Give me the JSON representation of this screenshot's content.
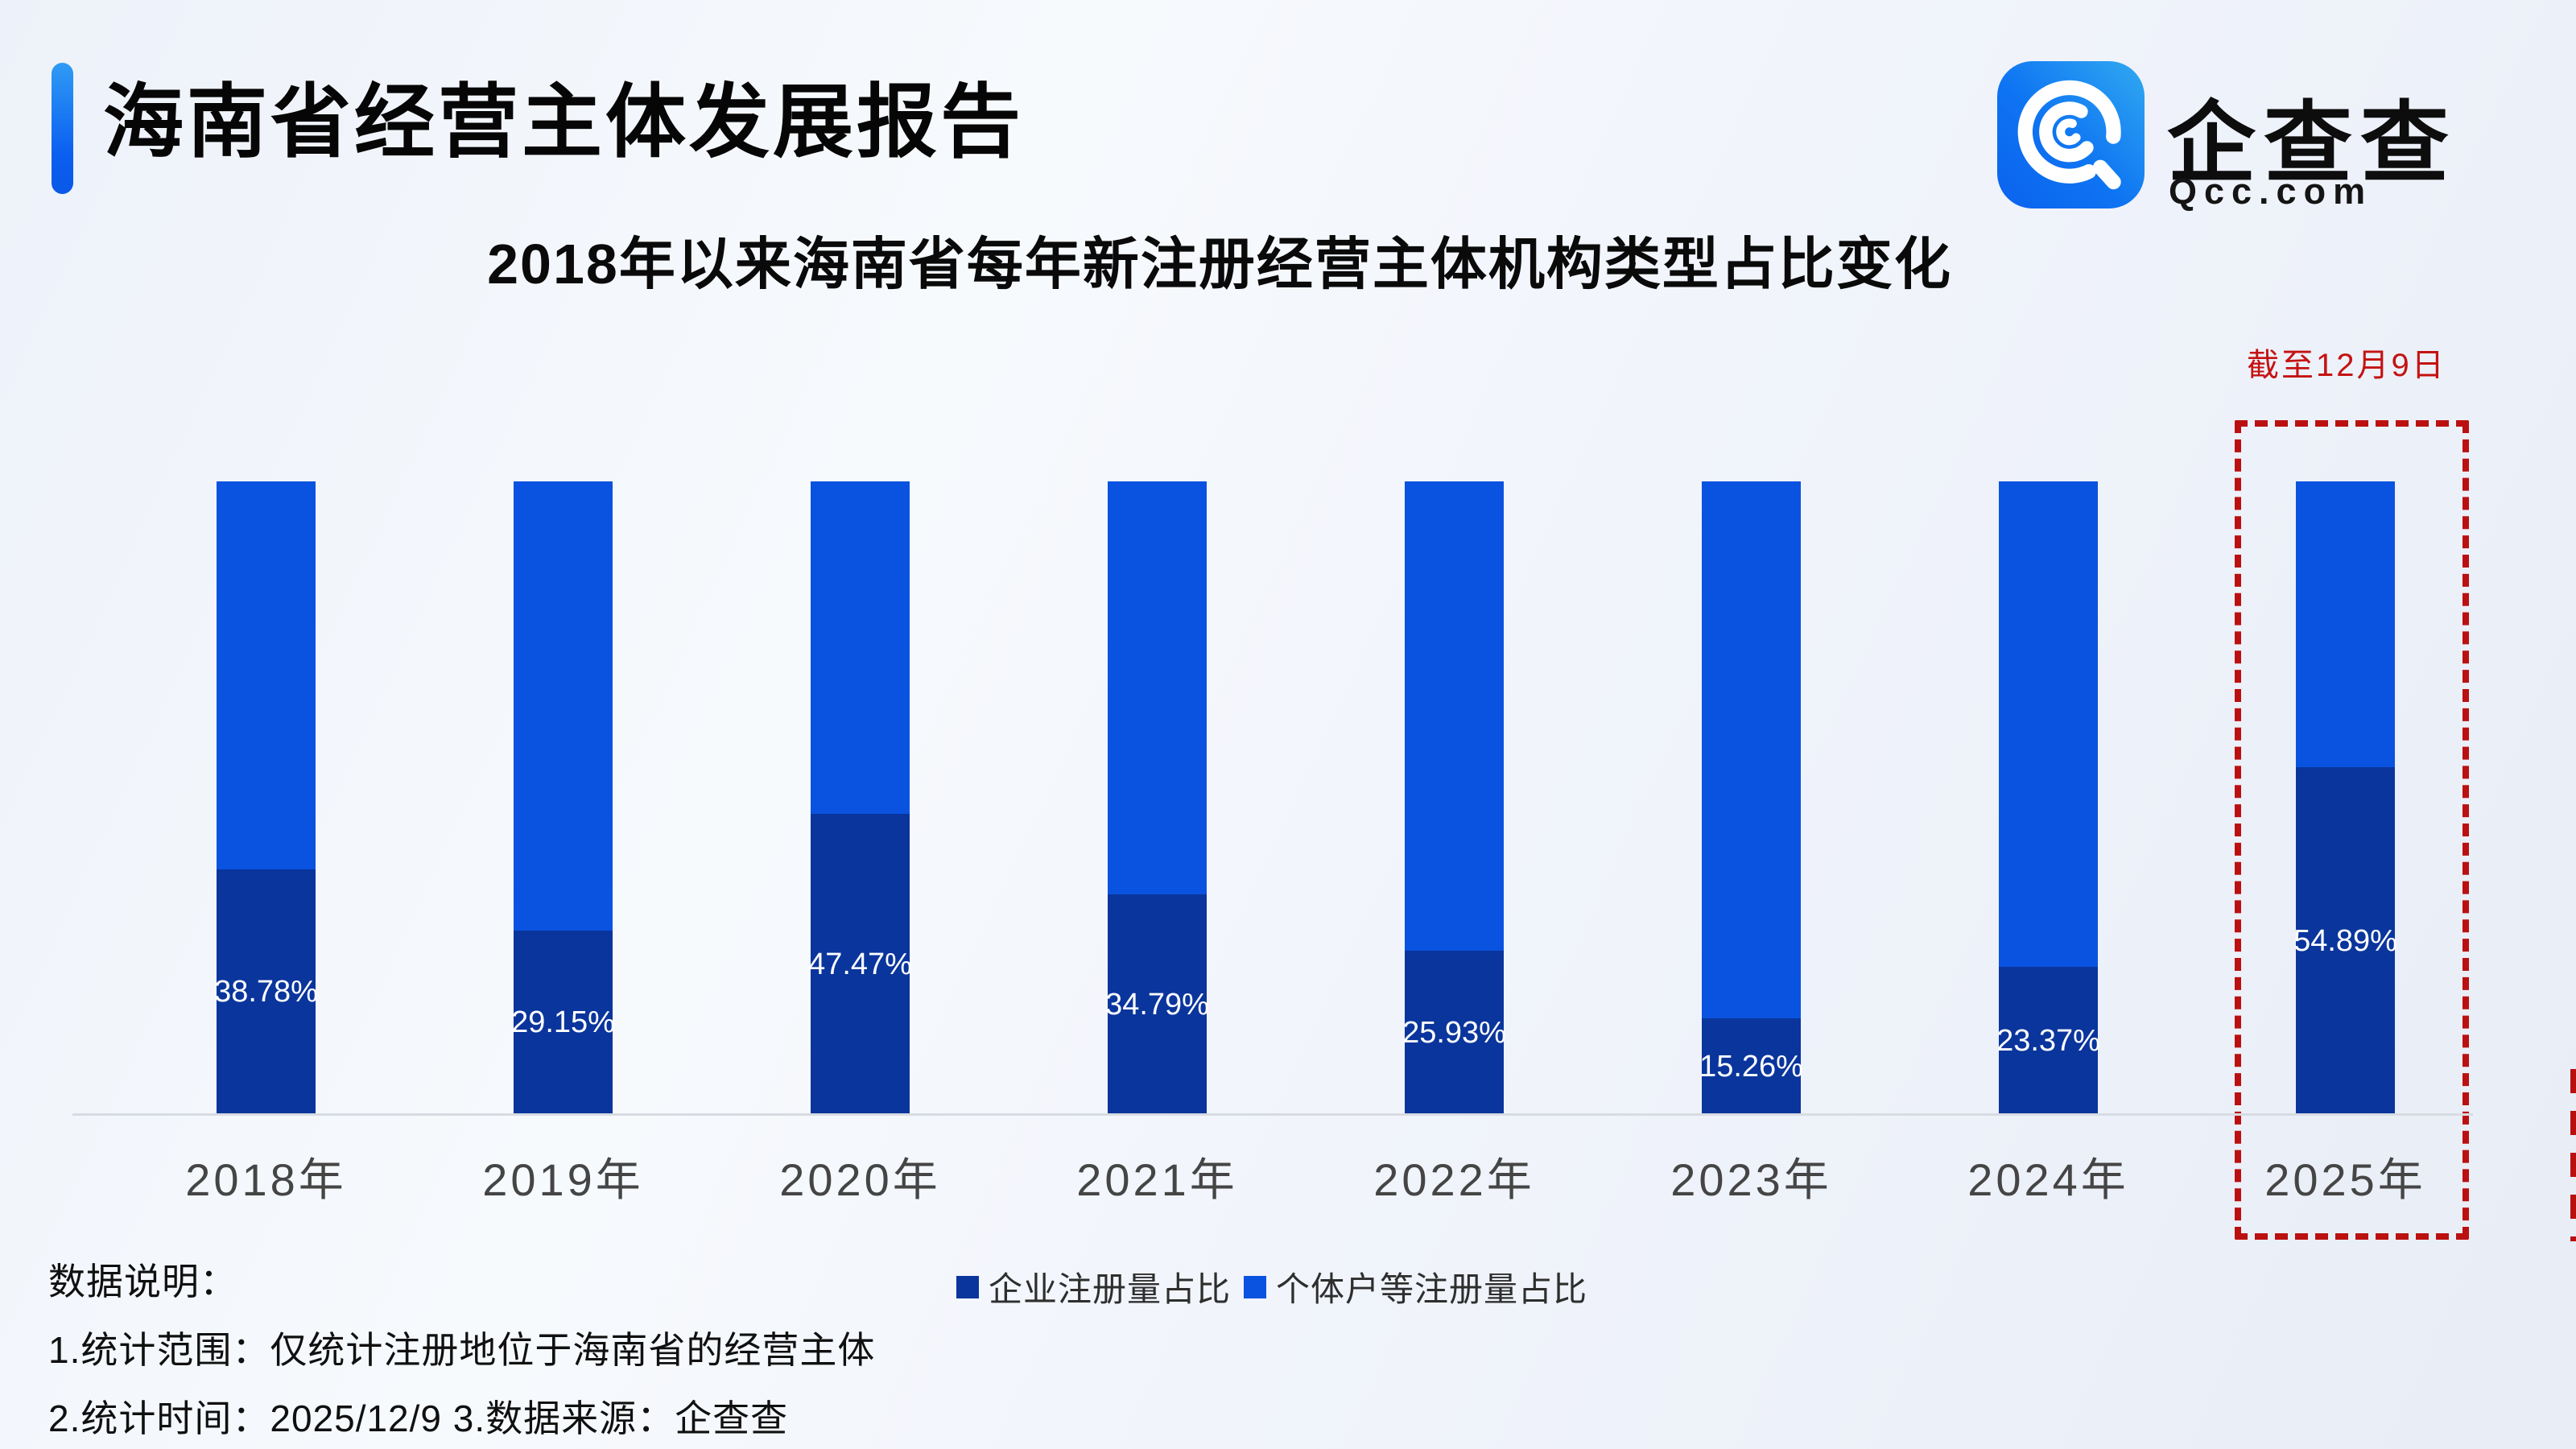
{
  "page": {
    "title": "海南省经营主体发展报告",
    "subtitle": "2018年以来海南省每年新注册经营主体机构类型占比变化"
  },
  "logo": {
    "brand": "企查查",
    "domain": "Qcc.com",
    "icon": "qcc-logo-icon",
    "icon_colors": {
      "from": "#31a9f1",
      "to": "#0b62ee",
      "mark": "#ffffff"
    }
  },
  "chart_data": {
    "type": "bar",
    "stacked": true,
    "percent_total": 100,
    "ylim": [
      0,
      100
    ],
    "grid": false,
    "legend_position": "bottom",
    "categories": [
      "2018年",
      "2019年",
      "2020年",
      "2021年",
      "2022年",
      "2023年",
      "2024年",
      "2025年"
    ],
    "series": [
      {
        "name": "企业注册量占比",
        "color": "#0a359c",
        "values": [
          38.78,
          29.15,
          47.47,
          34.79,
          25.93,
          15.26,
          23.37,
          54.89
        ],
        "labels": [
          "38.78%",
          "29.15%",
          "47.47%",
          "34.79%",
          "25.93%",
          "15.26%",
          "23.37%",
          "54.89%"
        ]
      },
      {
        "name": "个体户等注册量占比",
        "color": "#0a53e0",
        "values": [
          61.22,
          70.85,
          52.53,
          65.21,
          74.07,
          84.74,
          76.63,
          45.11
        ]
      }
    ],
    "highlight": {
      "category": "2025年",
      "annotation": "截至12月9日",
      "box_color": "#bb1010",
      "annotation_color": "#c41313"
    },
    "axis_line_color": "#d7dbe2"
  },
  "notes": {
    "heading": "数据说明：",
    "line1": "1.统计范围：仅统计注册地位于海南省的经营主体",
    "line2": " 2.统计时间：2025/12/9  3.数据来源：企查查"
  }
}
